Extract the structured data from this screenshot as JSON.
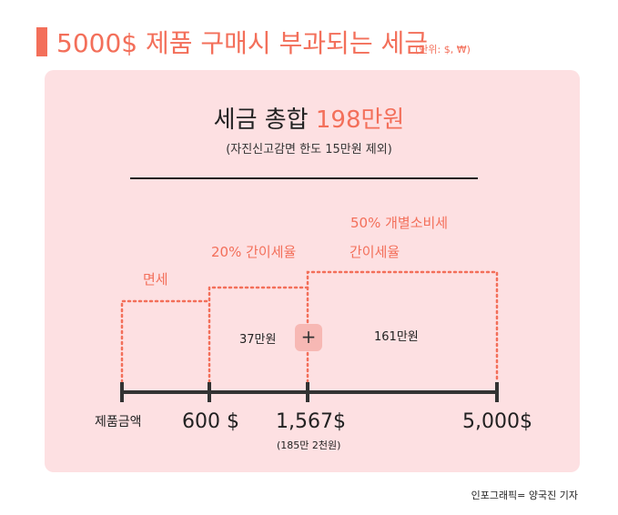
{
  "header": {
    "title": "5000$ 제품 구매시 부과되는 세금",
    "unit": "(단위: $, ₩)"
  },
  "summary": {
    "headline_prefix": "세금 총합 ",
    "headline_value": "198만원",
    "note": "(자진신고감면 한도 15만원 제외)"
  },
  "zones": {
    "exempt_label": "면세",
    "simple_tax_label": "20% 간이세율",
    "excise_label": "50% 개별소비세",
    "excise_sub_label": "간이세율"
  },
  "amounts": {
    "simple_tax_amount": "37만원",
    "excise_amount": "161만원",
    "plus_sign": "+"
  },
  "axis": {
    "axis_name": "제품금액",
    "tick_600": "600 $",
    "tick_1567": "1,567$",
    "tick_1567_sub": "(185만 2천원)",
    "tick_5000": "5,000$"
  },
  "colors": {
    "accent": "#f36f5a",
    "panel_bg": "#fde0e2",
    "axis": "#333333"
  },
  "credit": "인포그래픽= 양국진 기자"
}
